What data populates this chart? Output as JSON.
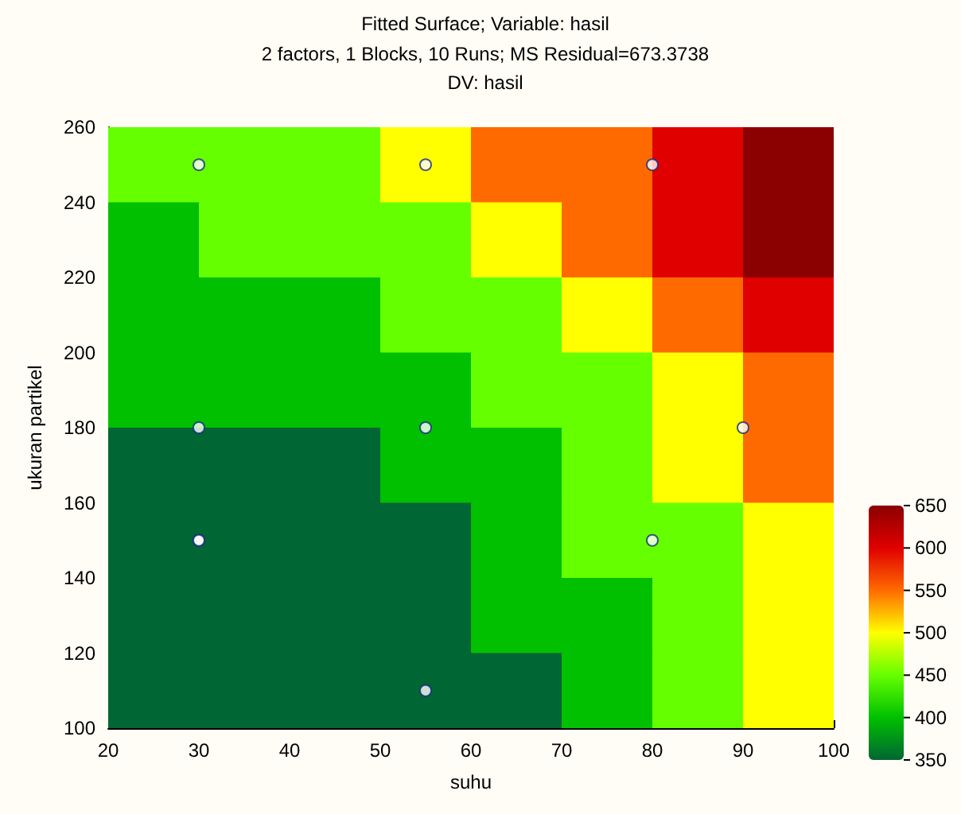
{
  "chart_data": {
    "type": "heatmap",
    "title": "Fitted Surface; Variable: hasil",
    "subtitle": "2 factors, 1 Blocks, 10 Runs; MS Residual=673.3738\nDV: hasil",
    "xlabel": "suhu",
    "ylabel": "ukuran partikel",
    "xlim": [
      20,
      100
    ],
    "xticks": [
      20,
      30,
      40,
      50,
      60,
      70,
      80,
      90,
      100
    ],
    "ylim": [
      100,
      260
    ],
    "yticks": [
      100,
      120,
      140,
      160,
      180,
      200,
      220,
      240,
      260
    ],
    "x": [
      25,
      35,
      45,
      55,
      65,
      75,
      85,
      95
    ],
    "y": [
      250,
      230,
      210,
      190,
      170,
      150,
      130,
      110
    ],
    "cells": [
      [
        450,
        450,
        450,
        500,
        550,
        550,
        600,
        650
      ],
      [
        400,
        450,
        450,
        450,
        500,
        550,
        600,
        650
      ],
      [
        400,
        400,
        400,
        450,
        450,
        500,
        550,
        600
      ],
      [
        400,
        400,
        400,
        400,
        450,
        450,
        500,
        550
      ],
      [
        350,
        350,
        350,
        400,
        400,
        450,
        500,
        550
      ],
      [
        350,
        350,
        350,
        350,
        400,
        450,
        450,
        500
      ],
      [
        350,
        350,
        350,
        350,
        400,
        400,
        450,
        500
      ],
      [
        350,
        350,
        350,
        350,
        350,
        400,
        450,
        500
      ]
    ],
    "clim": [
      350,
      650
    ],
    "cticks": [
      350,
      400,
      450,
      500,
      550,
      600,
      650
    ],
    "colors": [
      "#006633",
      "#00c000",
      "#66ff00",
      "#ffff00",
      "#ff6a00",
      "#e00000",
      "#8b0000"
    ],
    "series": [
      {
        "type": "scatter",
        "color": "#ffffff",
        "x": [
          30,
          55,
          80,
          30,
          55,
          90,
          30,
          30,
          80,
          55
        ],
        "values": [
          250,
          250,
          250,
          180,
          180,
          180,
          150,
          150,
          150,
          110
        ]
      }
    ],
    "marker": "circle",
    "grid": false
  }
}
